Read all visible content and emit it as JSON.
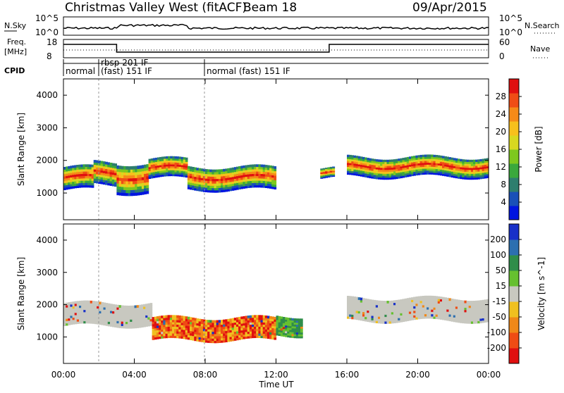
{
  "header": {
    "station": "Christmas Valley West (fitACF)",
    "beam": "Beam 18",
    "date": "09/Apr/2015"
  },
  "side_labels": {
    "nsky": "N.Sky",
    "nsearch": "N.Search",
    "freq": "Freq.",
    "freq_unit": "[MHz]",
    "nave": "Nave",
    "cpid": "CPID",
    "nsky_ticks": [
      "10^5",
      "10^0"
    ],
    "freq_ticks": [
      "18",
      "8"
    ],
    "nave_ticks": [
      "60",
      "0"
    ]
  },
  "cpid_segments": [
    {
      "label": "normal",
      "start_h": 0.0,
      "end_h": 2.0
    },
    {
      "label": "rbsp 201 IF",
      "start_h": 2.0,
      "end_h": 7.7
    },
    {
      "label": "(fast) 151 IF",
      "start_h": 2.0,
      "end_h": 7.7
    },
    {
      "label": "normal (fast) 151 IF",
      "start_h": 7.7,
      "end_h": 24.0
    }
  ],
  "chart_data": [
    {
      "type": "heatmap",
      "panel": "power",
      "ylabel": "Slant Range [km]",
      "ylim": [
        180,
        4500
      ],
      "yticks": [
        1000,
        2000,
        3000,
        4000
      ],
      "xlabel": "Time UT",
      "xlim": [
        0,
        24
      ],
      "xticks": [
        "00:00",
        "04:00",
        "08:00",
        "12:00",
        "16:00",
        "20:00",
        "00:00"
      ],
      "colorbar": {
        "label": "Power [dB]",
        "ticks": [
          "4",
          "8",
          "12",
          "16",
          "20",
          "24",
          "28"
        ],
        "colors": [
          "#0015e0",
          "#1950b8",
          "#2e7e6e",
          "#3aa83c",
          "#7ec81e",
          "#d8d820",
          "#f7c01c",
          "#f58a18",
          "#ef4d16",
          "#e01010"
        ]
      },
      "bands": [
        {
          "t0": 0.0,
          "t1": 1.7,
          "r_center": 1450,
          "width": 700
        },
        {
          "t0": 1.7,
          "t1": 3.0,
          "r_center": 1600,
          "width": 700
        },
        {
          "t0": 3.0,
          "t1": 4.8,
          "r_center": 1450,
          "width": 900
        },
        {
          "t0": 4.8,
          "t1": 7.0,
          "r_center": 1750,
          "width": 600
        },
        {
          "t0": 7.0,
          "t1": 12.0,
          "r_center": 1450,
          "width": 700
        },
        {
          "t0": 14.5,
          "t1": 15.3,
          "r_center": 1600,
          "width": 300
        },
        {
          "t0": 16.0,
          "t1": 24.0,
          "r_center": 1800,
          "width": 600
        }
      ]
    },
    {
      "type": "heatmap",
      "panel": "velocity",
      "ylabel": "Slant Range [km]",
      "ylim": [
        180,
        4500
      ],
      "yticks": [
        1000,
        2000,
        3000,
        4000
      ],
      "xlabel": "Time UT",
      "xlim": [
        0,
        24
      ],
      "xticks": [
        "00:00",
        "04:00",
        "08:00",
        "12:00",
        "16:00",
        "20:00",
        "00:00"
      ],
      "colorbar": {
        "label": "Velocity [m s^-1]",
        "ticks": [
          "200",
          "100",
          "50",
          "15",
          "-15",
          "-50",
          "-100",
          "-200"
        ],
        "colors": [
          "#1830c8",
          "#2c6fb0",
          "#2f8d4a",
          "#66c030",
          "#c8c8c0",
          "#f0c020",
          "#f08818",
          "#ef4c14",
          "#e01010"
        ]
      },
      "bands": [
        {
          "t0": 0.0,
          "t1": 5.0,
          "r_center": 1700,
          "width": 700,
          "class": "ground"
        },
        {
          "t0": 5.0,
          "t1": 12.0,
          "r_center": 1250,
          "width": 700,
          "class": "negative"
        },
        {
          "t0": 12.0,
          "t1": 13.5,
          "r_center": 1350,
          "width": 600,
          "class": "positive"
        },
        {
          "t0": 16.0,
          "t1": 24.0,
          "r_center": 1850,
          "width": 700,
          "class": "ground"
        }
      ]
    }
  ],
  "xaxis_title": "Time UT"
}
